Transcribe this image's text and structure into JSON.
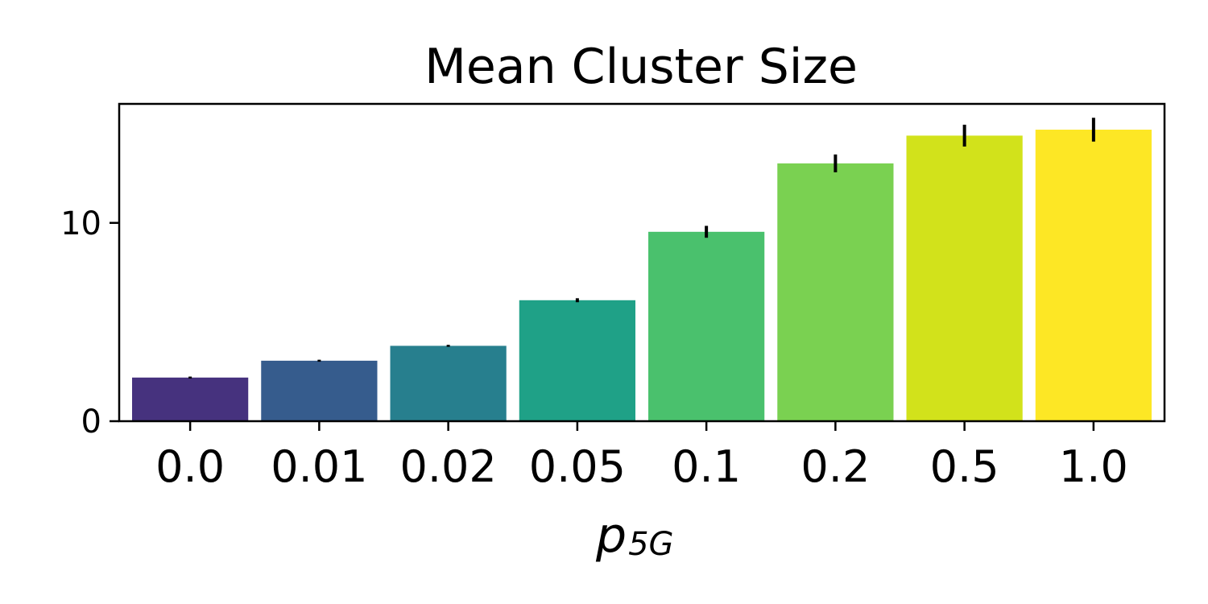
{
  "chart_data": {
    "type": "bar",
    "title": "Mean Cluster Size",
    "xlabel": "p",
    "xlabel_subscript": "5G",
    "ylabel": "",
    "categories": [
      "0.0",
      "0.01",
      "0.02",
      "0.05",
      "0.1",
      "0.2",
      "0.5",
      "1.0"
    ],
    "values": [
      2.2,
      3.05,
      3.8,
      6.1,
      9.55,
      13.0,
      14.4,
      14.7
    ],
    "error": [
      0.05,
      0.05,
      0.05,
      0.1,
      0.3,
      0.45,
      0.55,
      0.6
    ],
    "ylim": [
      0,
      16.0
    ],
    "yticks": [
      0,
      10
    ],
    "ytick_labels": [
      "0",
      "10"
    ],
    "grid": false,
    "colors": [
      "#46327e",
      "#365c8d",
      "#277f8e",
      "#1fa187",
      "#4ac16d",
      "#7ad151",
      "#d2e21b",
      "#fde725"
    ],
    "errorbar_color": "#000000"
  }
}
